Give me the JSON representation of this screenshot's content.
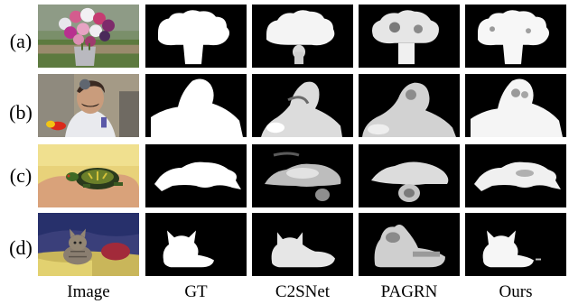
{
  "rows": [
    {
      "label": "(a)"
    },
    {
      "label": "(b)"
    },
    {
      "label": "(c)"
    },
    {
      "label": "(d)"
    }
  ],
  "columns": [
    {
      "label": "Image"
    },
    {
      "label": "GT"
    },
    {
      "label": "C2SNet"
    },
    {
      "label": "PAGRN"
    },
    {
      "label": "Ours"
    }
  ]
}
